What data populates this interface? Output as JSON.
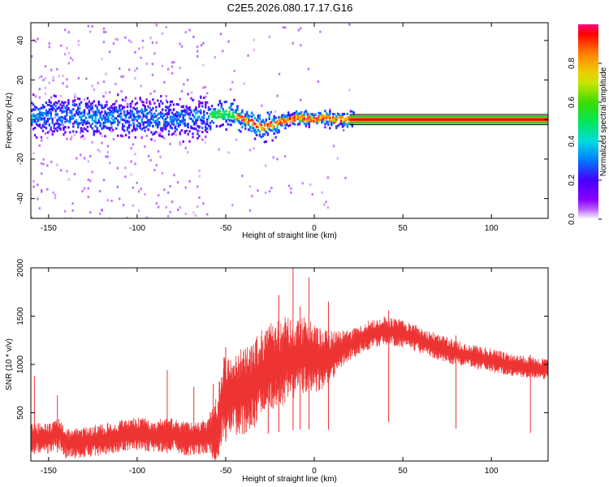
{
  "title": "C2E5.2026.080.17.17.G16",
  "chart_data": [
    {
      "type": "heatmap",
      "xlabel": "Height of straight line (km)",
      "ylabel": "Frequency (Hz)",
      "xlim": [
        -160,
        132
      ],
      "ylim": [
        -50,
        49
      ],
      "xticks": [
        -150,
        -100,
        -50,
        0,
        50,
        100
      ],
      "yticks": [
        -40,
        -20,
        0,
        20,
        40
      ],
      "ridge": [
        [
          -160,
          1
        ],
        [
          -140,
          2
        ],
        [
          -120,
          1
        ],
        [
          -100,
          1
        ],
        [
          -80,
          0
        ],
        [
          -60,
          1
        ],
        [
          -55,
          3
        ],
        [
          -45,
          2
        ],
        [
          -35,
          -2
        ],
        [
          -30,
          -4
        ],
        [
          -25,
          -3
        ],
        [
          -20,
          -1
        ],
        [
          -10,
          1
        ],
        [
          0,
          0
        ],
        [
          5,
          1
        ],
        [
          10,
          0
        ],
        [
          20,
          0
        ],
        [
          132,
          0
        ]
      ],
      "colorbar": {
        "label": "Normalized spectral amplitude",
        "range": [
          0.0,
          1.0
        ],
        "ticks": [
          "0.0",
          "0.2",
          "0.4",
          "0.6",
          "0.8"
        ]
      }
    },
    {
      "type": "line",
      "xlabel": "Height of straight line (km)",
      "ylabel": "SNR (10 * v/v)",
      "xlim": [
        -160,
        132
      ],
      "ylim": [
        0,
        2000
      ],
      "xticks": [
        -150,
        -100,
        -50,
        0,
        50,
        100
      ],
      "yticks": [
        500,
        1000,
        1500,
        2000
      ],
      "color": "#ee3333",
      "envelope": [
        [
          -160,
          250
        ],
        [
          -150,
          230
        ],
        [
          -145,
          300
        ],
        [
          -140,
          180
        ],
        [
          -130,
          200
        ],
        [
          -120,
          220
        ],
        [
          -110,
          260
        ],
        [
          -100,
          280
        ],
        [
          -90,
          260
        ],
        [
          -80,
          270
        ],
        [
          -70,
          220
        ],
        [
          -60,
          260
        ],
        [
          -55,
          280
        ],
        [
          -52,
          650
        ],
        [
          -45,
          700
        ],
        [
          -40,
          720
        ],
        [
          -35,
          760
        ],
        [
          -30,
          900
        ],
        [
          -25,
          950
        ],
        [
          -20,
          1000
        ],
        [
          -15,
          1050
        ],
        [
          -10,
          1080
        ],
        [
          -5,
          1100
        ],
        [
          0,
          1060
        ],
        [
          5,
          1050
        ],
        [
          10,
          1100
        ],
        [
          15,
          1150
        ],
        [
          20,
          1200
        ],
        [
          30,
          1300
        ],
        [
          40,
          1350
        ],
        [
          50,
          1320
        ],
        [
          60,
          1250
        ],
        [
          70,
          1180
        ],
        [
          80,
          1120
        ],
        [
          90,
          1080
        ],
        [
          100,
          1040
        ],
        [
          110,
          1000
        ],
        [
          120,
          970
        ],
        [
          132,
          950
        ]
      ],
      "spikes": [
        [
          -158,
          880
        ],
        [
          -145,
          680
        ],
        [
          -83,
          940
        ],
        [
          -68,
          770
        ],
        [
          -57,
          800
        ],
        [
          -50,
          1180
        ],
        [
          -26,
          1250
        ],
        [
          -20,
          1720
        ],
        [
          -12,
          2000
        ],
        [
          -8,
          1600
        ],
        [
          -3,
          1900
        ],
        [
          8,
          1650
        ],
        [
          42,
          1560
        ],
        [
          80,
          1300
        ],
        [
          122,
          1100
        ]
      ],
      "amplitude": [
        [
          -160,
          130
        ],
        [
          -60,
          150
        ],
        [
          -55,
          350
        ],
        [
          -20,
          400
        ],
        [
          0,
          300
        ],
        [
          20,
          130
        ],
        [
          132,
          90
        ]
      ]
    }
  ]
}
